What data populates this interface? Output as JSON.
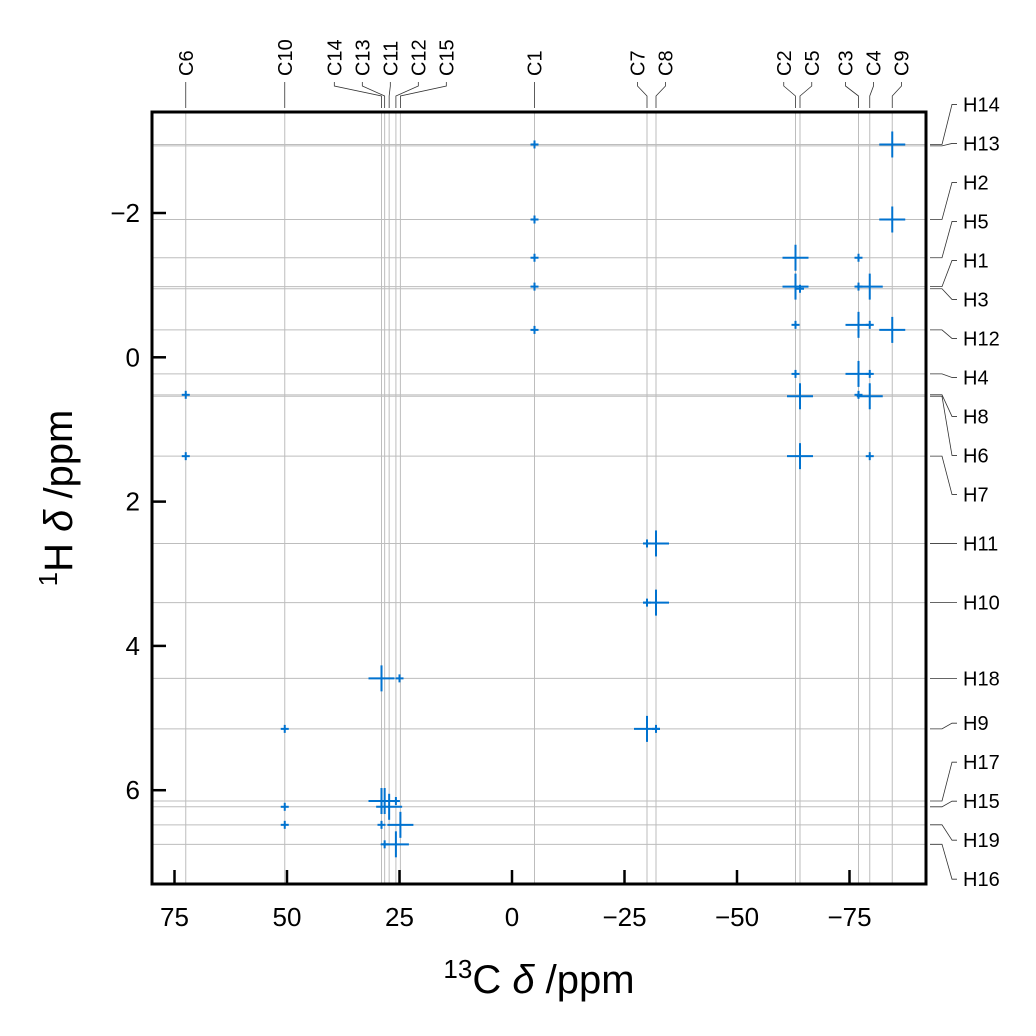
{
  "chart_data": {
    "type": "scatter",
    "title": "",
    "xlabel": {
      "sup": "13",
      "pre": "C ",
      "sym": "δ",
      "post": " /ppm"
    },
    "ylabel": {
      "sup": "1",
      "pre": "H ",
      "sym": "δ",
      "post": " /ppm"
    },
    "xlim": [
      80,
      -92
    ],
    "ylim": [
      -3.4,
      7.3
    ],
    "x_inverted": true,
    "y_inverted": true,
    "grid": true,
    "x_ticks": [
      75,
      50,
      25,
      0,
      -25,
      -50,
      -75
    ],
    "x_tick_labels": [
      "75",
      "50",
      "25",
      "0",
      "−25",
      "−50",
      "−75"
    ],
    "y_ticks": [
      -2,
      0,
      2,
      4,
      6
    ],
    "y_tick_labels": [
      "−2",
      "0",
      "2",
      "4",
      "6"
    ],
    "marker_color": "#0072cf",
    "grid_color": "#bdbdbd",
    "carbon_peaks": [
      {
        "label": "C6",
        "shift": 72.5
      },
      {
        "label": "C10",
        "shift": 50.5
      },
      {
        "label": "C14",
        "shift": 29.0
      },
      {
        "label": "C13",
        "shift": 28.3
      },
      {
        "label": "C11",
        "shift": 27.3
      },
      {
        "label": "C12",
        "shift": 25.8
      },
      {
        "label": "C15",
        "shift": 24.8
      },
      {
        "label": "C1",
        "shift": -5.0
      },
      {
        "label": "C7",
        "shift": -30.0
      },
      {
        "label": "C8",
        "shift": -32.0
      },
      {
        "label": "C2",
        "shift": -63.0
      },
      {
        "label": "C5",
        "shift": -64.0
      },
      {
        "label": "C3",
        "shift": -77.0
      },
      {
        "label": "C4",
        "shift": -79.5
      },
      {
        "label": "C9",
        "shift": -84.5
      }
    ],
    "proton_peaks": [
      {
        "label": "H14",
        "shift": -2.95
      },
      {
        "label": "H13",
        "shift": -2.93
      },
      {
        "label": "H2",
        "shift": -1.91
      },
      {
        "label": "H5",
        "shift": -1.38
      },
      {
        "label": "H1",
        "shift": -0.98
      },
      {
        "label": "H3",
        "shift": -0.95
      },
      {
        "label": "H12",
        "shift": -0.38
      },
      {
        "label": "H4",
        "shift": 0.23
      },
      {
        "label": "H8",
        "shift": 0.52
      },
      {
        "label": "H6",
        "shift": 0.54
      },
      {
        "label": "H7",
        "shift": 1.37
      },
      {
        "label": "H11",
        "shift": 2.58
      },
      {
        "label": "H10",
        "shift": 3.4
      },
      {
        "label": "H18",
        "shift": 4.45
      },
      {
        "label": "H9",
        "shift": 5.15
      },
      {
        "label": "H17",
        "shift": 6.15
      },
      {
        "label": "H15",
        "shift": 6.23
      },
      {
        "label": "H19",
        "shift": 6.48
      },
      {
        "label": "H16",
        "shift": 6.75
      }
    ],
    "points": [
      {
        "x": -5.0,
        "y": -2.95,
        "size": "small"
      },
      {
        "x": -5.0,
        "y": -1.91,
        "size": "small"
      },
      {
        "x": -5.0,
        "y": -1.38,
        "size": "small"
      },
      {
        "x": -5.0,
        "y": -0.98,
        "size": "small"
      },
      {
        "x": -5.0,
        "y": -0.38,
        "size": "small"
      },
      {
        "x": 72.5,
        "y": 0.52,
        "size": "small"
      },
      {
        "x": 72.5,
        "y": 1.37,
        "size": "small"
      },
      {
        "x": 50.5,
        "y": 5.15,
        "size": "small"
      },
      {
        "x": 50.5,
        "y": 6.23,
        "size": "small"
      },
      {
        "x": 50.5,
        "y": 6.48,
        "size": "small"
      },
      {
        "x": -84.5,
        "y": -2.95,
        "size": "large"
      },
      {
        "x": -84.5,
        "y": -1.91,
        "size": "large"
      },
      {
        "x": -84.5,
        "y": -0.38,
        "size": "large"
      },
      {
        "x": -63.0,
        "y": -1.38,
        "size": "large"
      },
      {
        "x": -63.0,
        "y": -0.98,
        "size": "large"
      },
      {
        "x": -64.0,
        "y": -0.95,
        "size": "small"
      },
      {
        "x": -63.0,
        "y": -0.45,
        "size": "small"
      },
      {
        "x": -63.0,
        "y": 0.23,
        "size": "small"
      },
      {
        "x": -64.0,
        "y": 0.54,
        "size": "large"
      },
      {
        "x": -64.0,
        "y": 1.37,
        "size": "large"
      },
      {
        "x": -77.0,
        "y": -1.38,
        "size": "small"
      },
      {
        "x": -77.0,
        "y": -0.98,
        "size": "small"
      },
      {
        "x": -79.5,
        "y": -0.98,
        "size": "large"
      },
      {
        "x": -77.0,
        "y": -0.45,
        "size": "large"
      },
      {
        "x": -79.5,
        "y": -0.45,
        "size": "small"
      },
      {
        "x": -77.0,
        "y": 0.23,
        "size": "large"
      },
      {
        "x": -79.5,
        "y": 0.23,
        "size": "small"
      },
      {
        "x": -77.0,
        "y": 0.52,
        "size": "small"
      },
      {
        "x": -79.5,
        "y": 0.54,
        "size": "large"
      },
      {
        "x": -79.5,
        "y": 1.37,
        "size": "small"
      },
      {
        "x": -30.0,
        "y": 2.58,
        "size": "small"
      },
      {
        "x": -32.0,
        "y": 2.58,
        "size": "large"
      },
      {
        "x": -30.0,
        "y": 3.4,
        "size": "small"
      },
      {
        "x": -32.0,
        "y": 3.4,
        "size": "large"
      },
      {
        "x": -30.0,
        "y": 5.15,
        "size": "large"
      },
      {
        "x": -32.0,
        "y": 5.15,
        "size": "small"
      },
      {
        "x": 29.0,
        "y": 4.45,
        "size": "large"
      },
      {
        "x": 25.0,
        "y": 4.45,
        "size": "small"
      },
      {
        "x": 29.0,
        "y": 6.15,
        "size": "large"
      },
      {
        "x": 28.3,
        "y": 6.15,
        "size": "large"
      },
      {
        "x": 27.3,
        "y": 6.23,
        "size": "large"
      },
      {
        "x": 25.8,
        "y": 6.15,
        "size": "small"
      },
      {
        "x": 29.0,
        "y": 6.48,
        "size": "small"
      },
      {
        "x": 24.8,
        "y": 6.48,
        "size": "large"
      },
      {
        "x": 28.3,
        "y": 6.75,
        "size": "small"
      },
      {
        "x": 25.8,
        "y": 6.75,
        "size": "large"
      }
    ]
  }
}
